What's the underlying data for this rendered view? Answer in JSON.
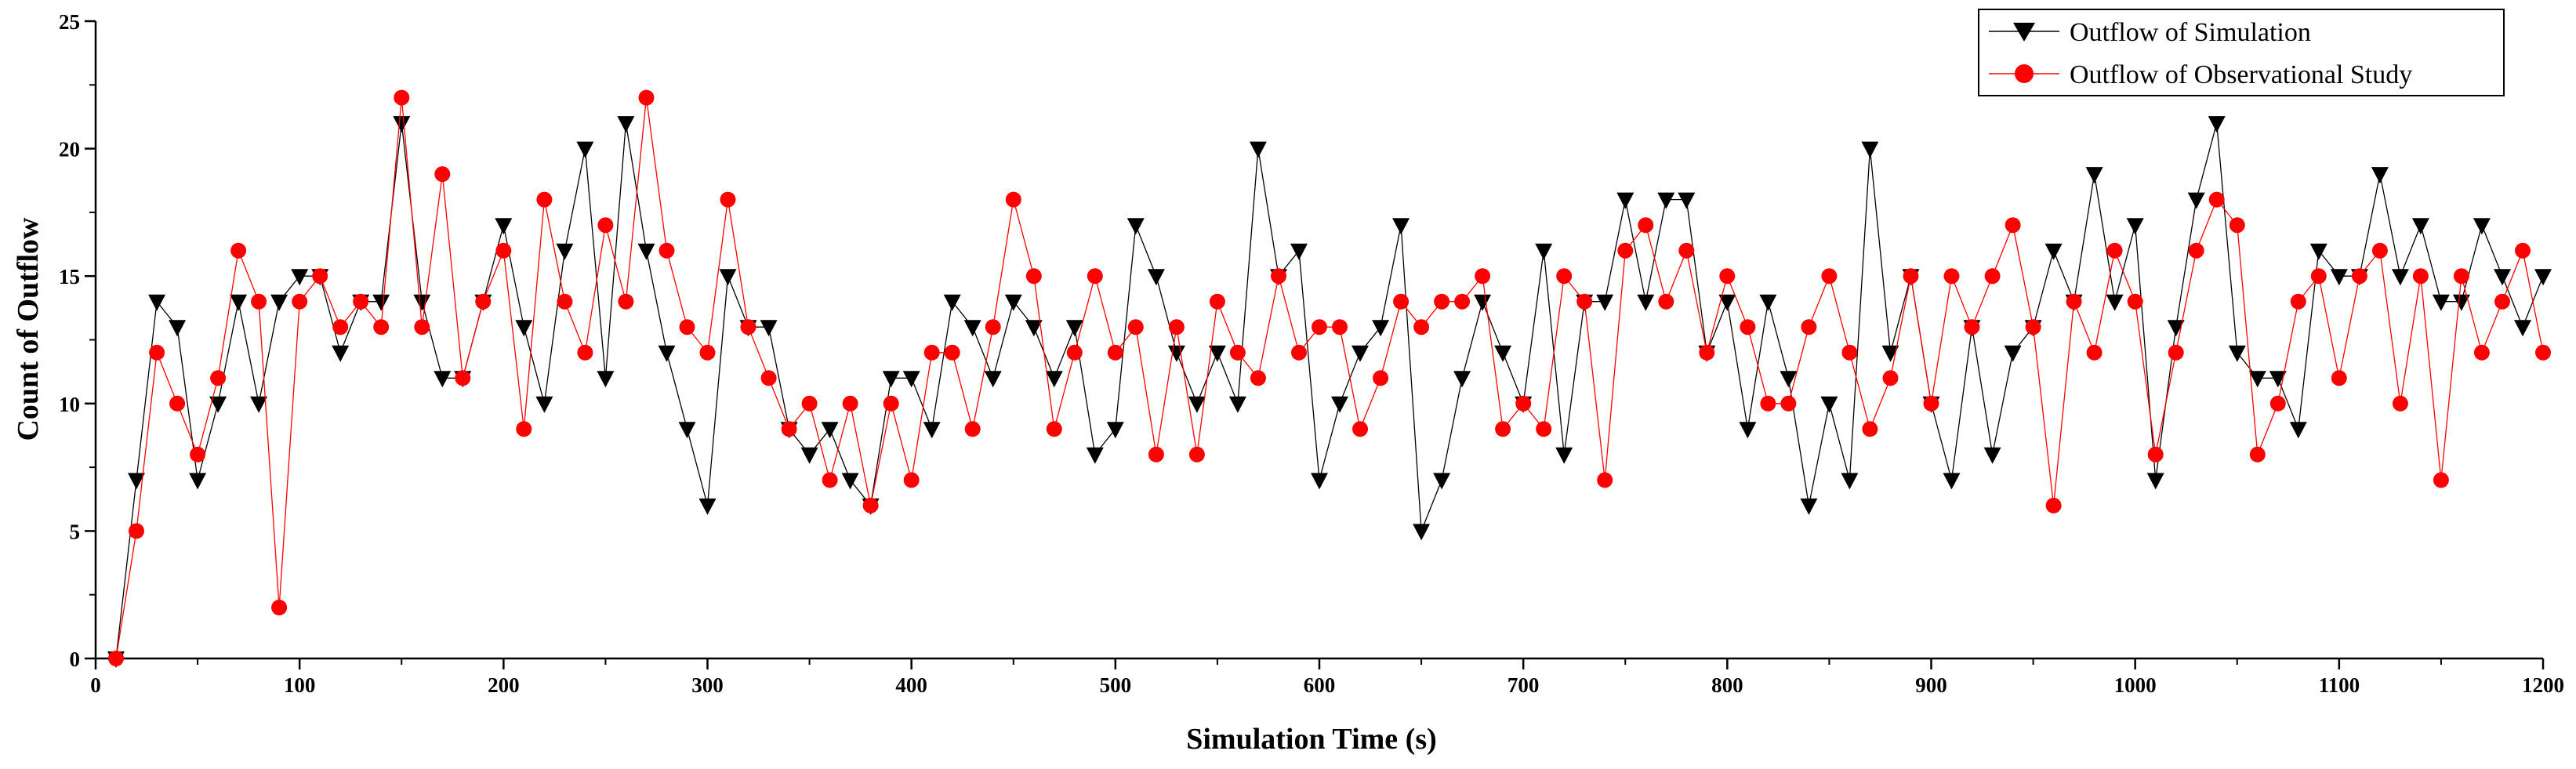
{
  "chart_data": {
    "type": "line",
    "title": "",
    "xlabel": "Simulation Time (s)",
    "ylabel": "Count of  Outflow",
    "xlim": [
      0,
      1200
    ],
    "ylim": [
      0,
      25
    ],
    "xticks": [
      "0",
      "100",
      "200",
      "300",
      "400",
      "500",
      "600",
      "700",
      "800",
      "900",
      "1000",
      "1100",
      "1200"
    ],
    "yticks": [
      "0",
      "5",
      "10",
      "15",
      "20",
      "25"
    ],
    "grid": false,
    "legend_position": "top-right",
    "x": [
      10,
      20,
      30,
      40,
      50,
      60,
      70,
      80,
      90,
      100,
      110,
      120,
      130,
      140,
      150,
      160,
      170,
      180,
      190,
      200,
      210,
      220,
      230,
      240,
      250,
      260,
      270,
      280,
      290,
      300,
      310,
      320,
      330,
      340,
      350,
      360,
      370,
      380,
      390,
      400,
      410,
      420,
      430,
      440,
      450,
      460,
      470,
      480,
      490,
      500,
      510,
      520,
      530,
      540,
      550,
      560,
      570,
      580,
      590,
      600,
      610,
      620,
      630,
      640,
      650,
      660,
      670,
      680,
      690,
      700,
      710,
      720,
      730,
      740,
      750,
      760,
      770,
      780,
      790,
      800,
      810,
      820,
      830,
      840,
      850,
      860,
      870,
      880,
      890,
      900,
      910,
      920,
      930,
      940,
      950,
      960,
      970,
      980,
      990,
      1000,
      1010,
      1020,
      1030,
      1040,
      1050,
      1060,
      1070,
      1080,
      1090,
      1100,
      1110,
      1120,
      1130,
      1140,
      1150,
      1160,
      1170,
      1180,
      1190,
      1200
    ],
    "series": [
      {
        "name": "Outflow of Simulation",
        "color": "#000000",
        "marker": "triangle-down",
        "values": [
          0,
          7,
          14,
          13,
          7,
          10,
          14,
          10,
          14,
          15,
          15,
          12,
          14,
          14,
          21,
          14,
          11,
          11,
          14,
          17,
          13,
          10,
          16,
          20,
          11,
          21,
          16,
          12,
          9,
          6,
          15,
          13,
          13,
          9,
          8,
          9,
          7,
          6,
          11,
          11,
          9,
          14,
          13,
          11,
          14,
          13,
          11,
          13,
          8,
          9,
          17,
          15,
          12,
          10,
          12,
          10,
          20,
          15,
          16,
          7,
          10,
          12,
          13,
          17,
          5,
          7,
          11,
          14,
          12,
          10,
          16,
          8,
          14,
          14,
          18,
          14,
          18,
          18,
          12,
          14,
          9,
          14,
          11,
          6,
          10,
          7,
          20,
          12,
          15,
          10,
          7,
          13,
          8,
          12,
          13,
          16,
          14,
          19,
          14,
          17,
          7,
          13,
          18,
          21,
          12,
          11,
          11,
          9,
          16,
          15,
          15,
          19,
          15,
          17,
          14,
          14,
          17,
          15,
          13,
          15
        ]
      },
      {
        "name": "Outflow of Observational Study",
        "color": "#ff0000",
        "marker": "circle",
        "values": [
          0,
          5,
          12,
          10,
          8,
          11,
          16,
          14,
          2,
          14,
          15,
          13,
          14,
          13,
          22,
          13,
          19,
          11,
          14,
          16,
          9,
          18,
          14,
          12,
          17,
          14,
          22,
          16,
          13,
          12,
          18,
          13,
          11,
          9,
          10,
          7,
          10,
          6,
          10,
          7,
          12,
          12,
          9,
          13,
          18,
          15,
          9,
          12,
          15,
          12,
          13,
          8,
          13,
          8,
          14,
          12,
          11,
          15,
          12,
          13,
          13,
          9,
          11,
          14,
          13,
          14,
          14,
          15,
          9,
          10,
          9,
          15,
          14,
          7,
          16,
          17,
          14,
          16,
          12,
          15,
          13,
          10,
          10,
          13,
          15,
          12,
          9,
          11,
          15,
          10,
          15,
          13,
          15,
          17,
          13,
          6,
          14,
          12,
          16,
          14,
          8,
          12,
          16,
          18,
          17,
          8,
          10,
          14,
          15,
          11,
          15,
          16,
          10,
          15,
          7,
          15,
          12,
          14,
          16,
          12
        ]
      }
    ]
  }
}
